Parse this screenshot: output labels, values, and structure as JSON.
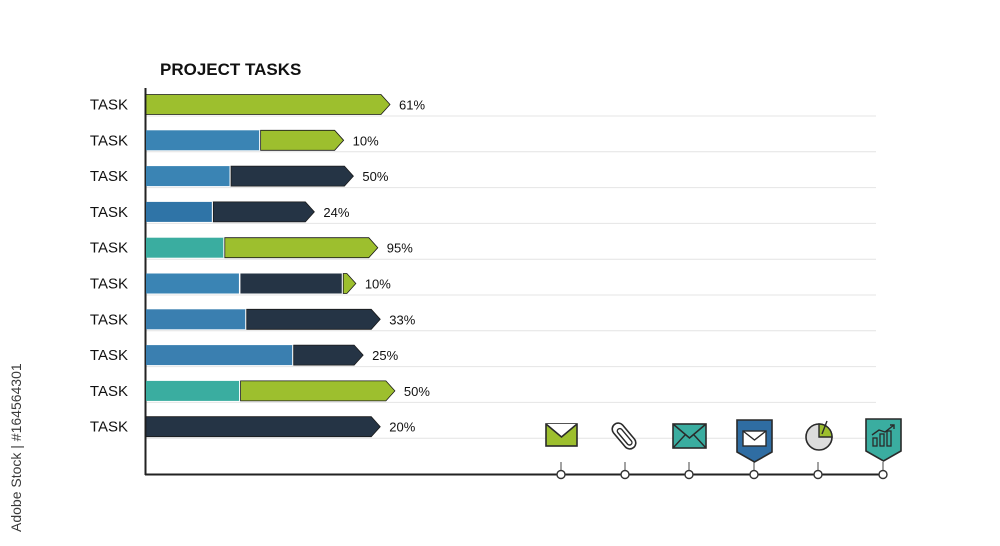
{
  "chart_data": {
    "type": "bar",
    "title": "PROJECT TASKS",
    "xlabel": "",
    "ylabel": "",
    "categories": [
      "TASK",
      "TASK",
      "TASK",
      "TASK",
      "TASK",
      "TASK",
      "TASK",
      "TASK",
      "TASK",
      "TASK"
    ],
    "value_labels": [
      "61%",
      "10%",
      "50%",
      "24%",
      "95%",
      "10%",
      "33%",
      "25%",
      "50%",
      "20%"
    ],
    "rows": [
      {
        "segments": [
          {
            "fraction": 1.0,
            "color": "#9dbf2e"
          }
        ]
      },
      {
        "segments": [
          {
            "fraction": 0.58,
            "color": "#3a84b4"
          },
          {
            "fraction": 0.42,
            "color": "#9dbf2e"
          }
        ]
      },
      {
        "segments": [
          {
            "fraction": 0.41,
            "color": "#3a84b4"
          },
          {
            "fraction": 0.59,
            "color": "#253445"
          }
        ]
      },
      {
        "segments": [
          {
            "fraction": 0.4,
            "color": "#2f74a7"
          },
          {
            "fraction": 0.6,
            "color": "#253445"
          }
        ]
      },
      {
        "segments": [
          {
            "fraction": 0.34,
            "color": "#3aada0"
          },
          {
            "fraction": 0.66,
            "color": "#9dbf2e"
          }
        ]
      },
      {
        "segments": [
          {
            "fraction": 0.45,
            "color": "#3a84b4"
          },
          {
            "fraction": 0.49,
            "color": "#253445"
          },
          {
            "fraction": 0.06,
            "color": "#9dbf2e"
          }
        ]
      },
      {
        "segments": [
          {
            "fraction": 0.43,
            "color": "#3a7fb0"
          },
          {
            "fraction": 0.57,
            "color": "#253445"
          }
        ]
      },
      {
        "segments": [
          {
            "fraction": 0.68,
            "color": "#3a7fb0"
          },
          {
            "fraction": 0.32,
            "color": "#253445"
          }
        ]
      },
      {
        "segments": [
          {
            "fraction": 0.38,
            "color": "#3aada0"
          },
          {
            "fraction": 0.62,
            "color": "#9dbf2e"
          }
        ]
      },
      {
        "segments": [
          {
            "fraction": 1.0,
            "color": "#253445"
          }
        ]
      }
    ],
    "bar_lengths_relative": [
      1.0,
      0.81,
      0.85,
      0.69,
      0.95,
      0.86,
      0.96,
      0.89,
      1.02,
      0.96
    ],
    "grid": true,
    "legend": "none"
  },
  "icons": [
    "envelope-icon",
    "paperclip-icon",
    "open-envelope-icon",
    "envelope-badge-icon",
    "pie-chart-icon",
    "growth-chart-badge-icon"
  ],
  "colors": {
    "green": "#9dbf2e",
    "blue": "#3a84b4",
    "teal": "#3aada0",
    "navy": "#253445",
    "grid": "#e4e4e4",
    "axis": "#222222"
  },
  "watermark": "Adobe Stock | #164564301"
}
